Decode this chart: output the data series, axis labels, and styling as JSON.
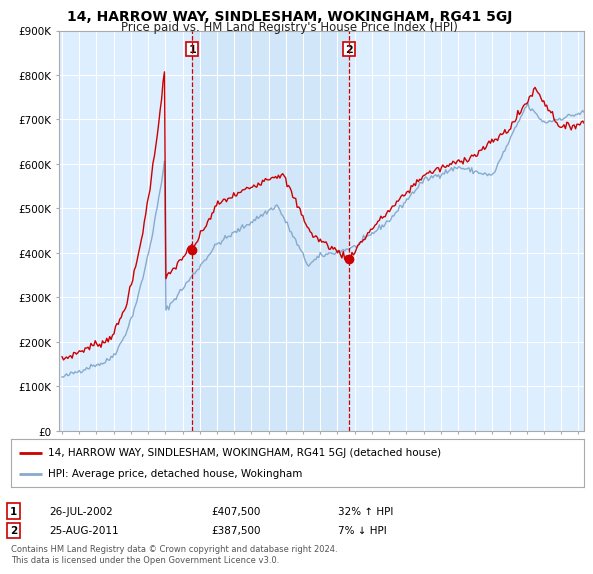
{
  "title": "14, HARROW WAY, SINDLESHAM, WOKINGHAM, RG41 5GJ",
  "subtitle": "Price paid vs. HM Land Registry's House Price Index (HPI)",
  "red_label": "14, HARROW WAY, SINDLESHAM, WOKINGHAM, RG41 5GJ (detached house)",
  "blue_label": "HPI: Average price, detached house, Wokingham",
  "sale1_date": "26-JUL-2002",
  "sale1_price": 407500,
  "sale1_pct": "32% ↑ HPI",
  "sale1_x": 2002.57,
  "sale2_date": "25-AUG-2011",
  "sale2_price": 387500,
  "sale2_pct": "7% ↓ HPI",
  "sale2_x": 2011.65,
  "footer": "Contains HM Land Registry data © Crown copyright and database right 2024.\nThis data is licensed under the Open Government Licence v3.0.",
  "ylim": [
    0,
    900000
  ],
  "xlim": [
    1994.8,
    2025.3
  ],
  "background_color": "#ffffff",
  "plot_bg_color": "#ddeeff",
  "highlight_color": "#cce4f7",
  "red_color": "#cc0000",
  "blue_color": "#88aacc",
  "dashed_color": "#cc0000",
  "marker_color": "#cc0000"
}
